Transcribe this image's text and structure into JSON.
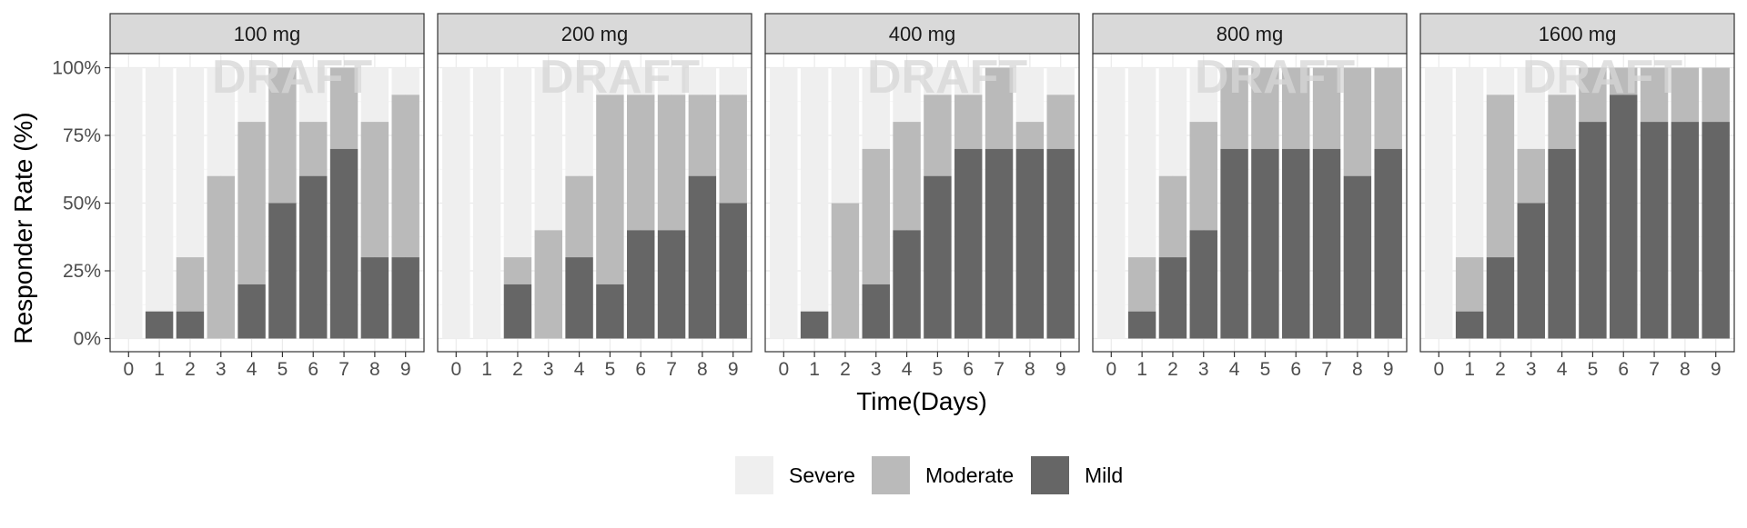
{
  "chart_data": {
    "type": "bar",
    "stacked": true,
    "facet_labels": [
      "100 mg",
      "200 mg",
      "400 mg",
      "800 mg",
      "1600 mg"
    ],
    "x": [
      0,
      1,
      2,
      3,
      4,
      5,
      6,
      7,
      8,
      9
    ],
    "xlabel": "Time(Days)",
    "ylabel": "Responder Rate (%)",
    "ylim": [
      0,
      100
    ],
    "yticks": [
      0,
      25,
      50,
      75,
      100
    ],
    "ytick_labels": [
      "0%",
      "25%",
      "50%",
      "75%",
      "100%"
    ],
    "grid": true,
    "legend_position": "bottom",
    "watermark": "DRAFT",
    "series": [
      {
        "name": "Severe",
        "color": "#efefef"
      },
      {
        "name": "Moderate",
        "color": "#bababa"
      },
      {
        "name": "Mild",
        "color": "#666666"
      }
    ],
    "panels": [
      {
        "label": "100 mg",
        "mild": [
          0,
          10,
          10,
          0,
          20,
          50,
          60,
          70,
          30,
          30
        ],
        "moderate": [
          0,
          0,
          20,
          60,
          60,
          50,
          20,
          30,
          50,
          60
        ]
      },
      {
        "label": "200 mg",
        "mild": [
          0,
          0,
          20,
          0,
          30,
          20,
          40,
          40,
          60,
          50
        ],
        "moderate": [
          0,
          0,
          10,
          40,
          30,
          70,
          50,
          50,
          30,
          40
        ]
      },
      {
        "label": "400 mg",
        "mild": [
          0,
          10,
          0,
          20,
          40,
          60,
          70,
          70,
          70,
          70
        ],
        "moderate": [
          0,
          0,
          50,
          50,
          40,
          30,
          20,
          30,
          10,
          20
        ]
      },
      {
        "label": "800 mg",
        "mild": [
          0,
          10,
          30,
          40,
          70,
          70,
          70,
          70,
          60,
          70
        ],
        "moderate": [
          0,
          20,
          30,
          40,
          30,
          30,
          30,
          30,
          40,
          30
        ]
      },
      {
        "label": "1600 mg",
        "mild": [
          0,
          10,
          30,
          50,
          70,
          80,
          90,
          80,
          80,
          80
        ],
        "moderate": [
          0,
          20,
          60,
          20,
          20,
          20,
          10,
          20,
          20,
          20
        ]
      }
    ]
  }
}
